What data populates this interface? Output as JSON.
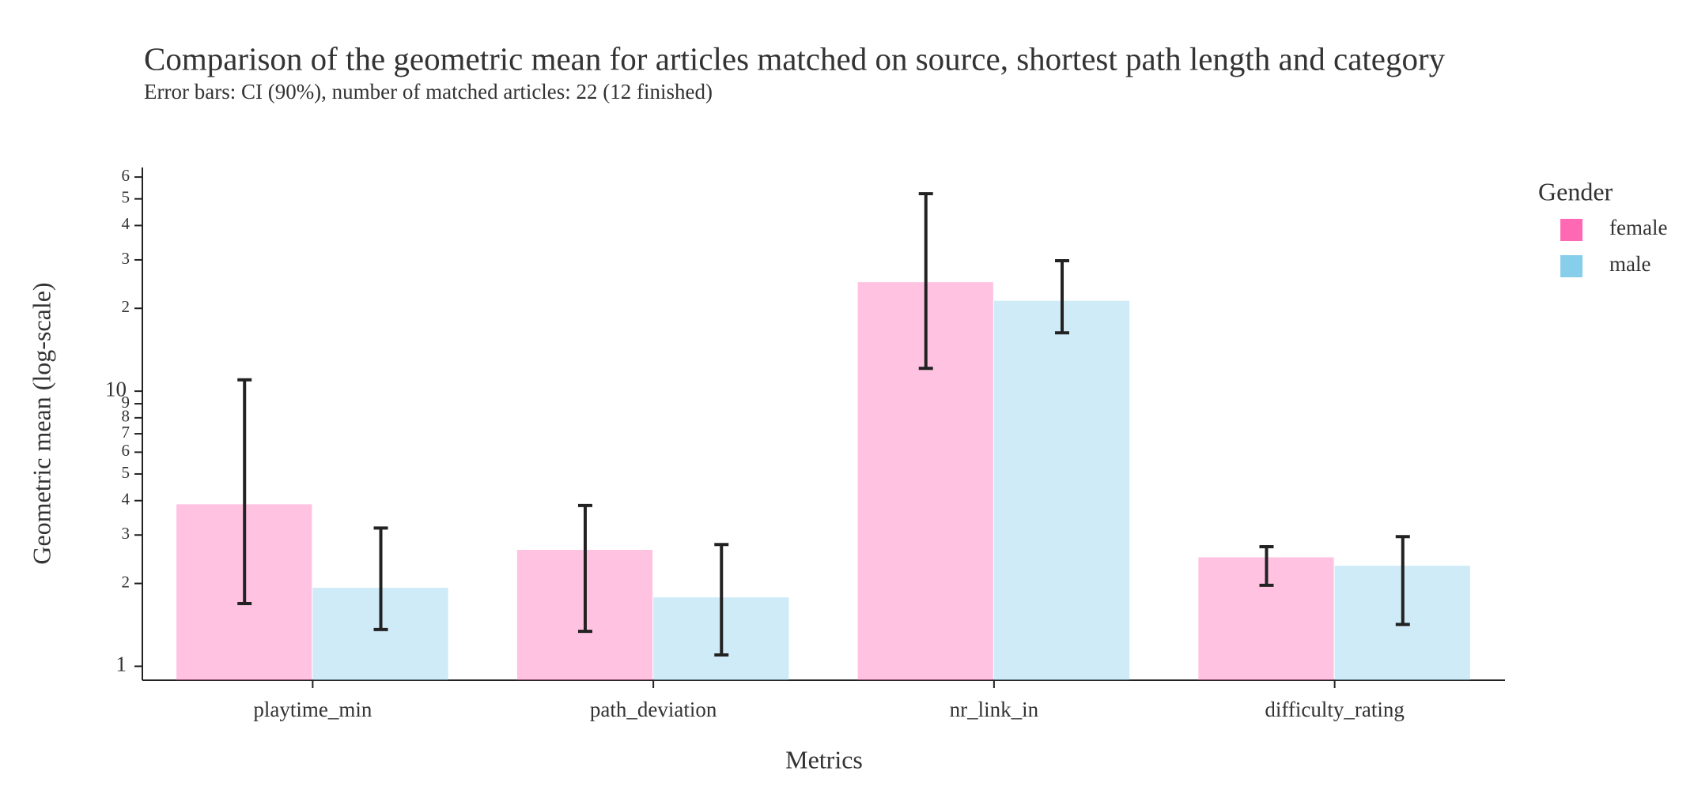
{
  "chart_data": {
    "type": "bar",
    "title": "Comparison of the geometric mean for articles matched on source, shortest path length and category",
    "subtitle": "Error bars: CI (90%), number of matched articles: 22 (12 finished)",
    "x_label": "Metrics",
    "y_label": "Geometric mean (log-scale)",
    "legend_title": "Gender",
    "categories": [
      "playtime_min",
      "path_deviation",
      "nr_link_in",
      "difficulty_rating"
    ],
    "series": [
      {
        "name": "female",
        "color": "#ff69b4",
        "values": [
          3.88,
          2.65,
          24.9,
          2.49
        ],
        "error_low": [
          1.69,
          1.34,
          12.1,
          1.97
        ],
        "error_high": [
          11.0,
          3.84,
          52.2,
          2.72
        ]
      },
      {
        "name": "male",
        "color": "#87ceeb",
        "values": [
          1.93,
          1.78,
          21.3,
          2.32
        ],
        "error_low": [
          1.36,
          1.1,
          16.3,
          1.42
        ],
        "error_high": [
          3.18,
          2.77,
          29.8,
          2.96
        ]
      }
    ],
    "log_scale": true,
    "ylim": [
      0.89,
      65
    ],
    "yticks": [
      1,
      2,
      3,
      4,
      5,
      6,
      7,
      8,
      9,
      10,
      {
        "value": 20,
        "label": "2"
      },
      {
        "value": 30,
        "label": "3"
      },
      {
        "value": 40,
        "label": "4"
      },
      {
        "value": 50,
        "label": "5"
      },
      {
        "value": 60,
        "label": "6"
      }
    ]
  }
}
